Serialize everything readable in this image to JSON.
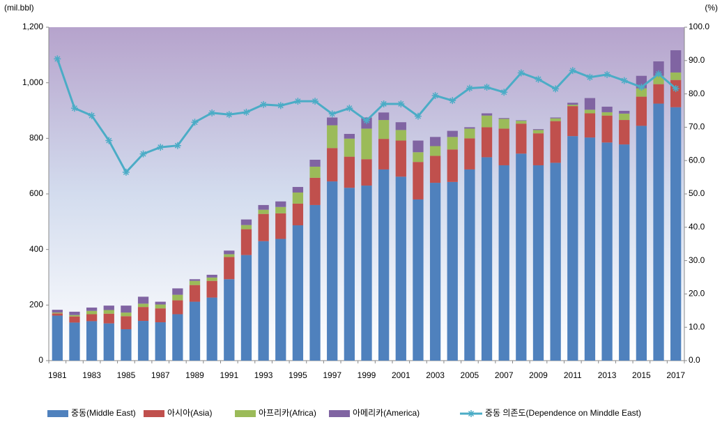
{
  "chart_data": {
    "type": "bar",
    "stacked": true,
    "y_label": "(mil.bbl)",
    "y2_label": "(%)",
    "categories": [
      "1981",
      null,
      "1983",
      null,
      "1985",
      null,
      "1987",
      null,
      "1989",
      null,
      "1991",
      null,
      "1993",
      null,
      "1995",
      null,
      "1997",
      null,
      "1999",
      null,
      "2001",
      null,
      "2003",
      null,
      "2005",
      null,
      "2007",
      null,
      "2009",
      null,
      "2011",
      null,
      "2013",
      null,
      "2015",
      null,
      "2017"
    ],
    "series": [
      {
        "name": "중동(Middle East)",
        "color": "#4f81bd",
        "values": [
          162,
          137,
          142,
          134,
          113,
          143,
          138,
          167,
          212,
          227,
          293,
          380,
          430,
          438,
          487,
          560,
          645,
          622,
          630,
          688,
          662,
          580,
          640,
          643,
          688,
          732,
          703,
          745,
          703,
          712,
          808,
          803,
          785,
          778,
          845,
          925,
          912
        ]
      },
      {
        "name": "아시아(Asia)",
        "color": "#c0504d",
        "values": [
          8,
          22,
          25,
          35,
          47,
          50,
          50,
          50,
          60,
          60,
          80,
          93,
          98,
          92,
          78,
          98,
          120,
          112,
          95,
          110,
          130,
          135,
          97,
          117,
          112,
          108,
          132,
          108,
          115,
          150,
          108,
          87,
          97,
          88,
          105,
          70,
          98
        ]
      },
      {
        "name": "아프리카(Africa)",
        "color": "#9bbb59",
        "values": [
          3,
          5,
          12,
          13,
          13,
          12,
          14,
          20,
          15,
          12,
          10,
          15,
          15,
          23,
          40,
          40,
          82,
          65,
          110,
          68,
          38,
          35,
          35,
          45,
          35,
          42,
          35,
          10,
          12,
          10,
          5,
          13,
          12,
          23,
          30,
          30,
          27
        ]
      },
      {
        "name": "아메리카(America)",
        "color": "#8064a2",
        "values": [
          10,
          12,
          12,
          16,
          25,
          25,
          10,
          23,
          6,
          10,
          13,
          20,
          17,
          20,
          20,
          25,
          28,
          17,
          40,
          27,
          28,
          42,
          33,
          22,
          5,
          8,
          3,
          2,
          3,
          3,
          7,
          42,
          20,
          10,
          45,
          52,
          80
        ]
      },
      {
        "name": "중동 의존도(Dependence on Minddle East)",
        "type": "line",
        "axis": "y2",
        "color": "#4bacc6",
        "values": [
          90.5,
          75.7,
          73.5,
          66,
          56.5,
          62,
          64,
          64.5,
          71.5,
          74.3,
          73.8,
          74.5,
          76.8,
          76.5,
          77.8,
          77.8,
          74,
          75.7,
          72,
          77,
          77,
          73.3,
          79.5,
          78,
          81.7,
          82,
          80.5,
          86.3,
          84.4,
          81.5,
          87,
          85,
          85.8,
          84,
          82,
          86,
          81.6
        ]
      }
    ],
    "ylim": [
      0,
      1200
    ],
    "yticks": [
      0,
      200,
      400,
      600,
      800,
      {
        "value": 1000,
        "label": "1,000"
      },
      {
        "value": 1200,
        "label": "1,200"
      }
    ],
    "y2lim": [
      0,
      100
    ],
    "y2ticks": [
      {
        "value": 0,
        "label": "0.0"
      },
      {
        "value": 10,
        "label": "10.0"
      },
      {
        "value": 20,
        "label": "20.0"
      },
      {
        "value": 30,
        "label": "30.0"
      },
      {
        "value": 40,
        "label": "40.0"
      },
      {
        "value": 50,
        "label": "50.0"
      },
      {
        "value": 60,
        "label": "60.0"
      },
      {
        "value": 70,
        "label": "70.0"
      },
      {
        "value": 80,
        "label": "80.0"
      },
      {
        "value": 90,
        "label": "90.0"
      },
      {
        "value": 100,
        "label": "100.0"
      }
    ],
    "legend": "bottom"
  }
}
